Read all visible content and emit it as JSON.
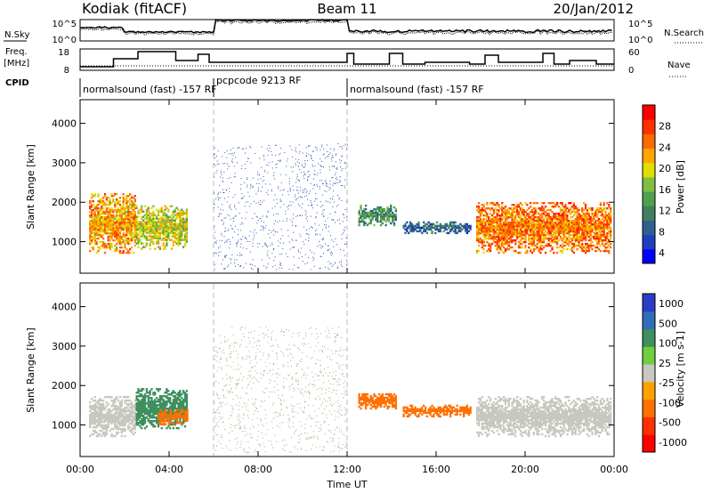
{
  "header": {
    "station": "Kodiak (fitACF)",
    "beam": "Beam 11",
    "date": "20/Jan/2012"
  },
  "left_labels": {
    "nsky": "N.Sky",
    "freq_line1": "Freq.",
    "freq_line2": "[MHz]",
    "cpid": "CPID"
  },
  "right_labels": {
    "nsearch": "N.Search",
    "nave": "Nave"
  },
  "top_panel_ticks": {
    "n_left": [
      "10^5",
      "10^0"
    ],
    "n_right": [
      "10^5",
      "10^0"
    ],
    "freq_left": [
      "18",
      "8"
    ],
    "freq_right": [
      "60",
      "0"
    ]
  },
  "cpid_segments": [
    {
      "label": "normalsound (fast) -157 RF",
      "start_h": 0,
      "end_h": 6
    },
    {
      "label": "pcpcode 9213 RF",
      "start_h": 6,
      "end_h": 12
    },
    {
      "label": "normalsound (fast) -157 RF",
      "start_h": 12,
      "end_h": 24
    }
  ],
  "chart_data": [
    {
      "type": "heatmap",
      "ylabel": "Slant Range [km]",
      "xlabel": "Time UT",
      "xlim": [
        0,
        24
      ],
      "ylim": [
        200,
        4600
      ],
      "x_ticks": [
        "00:00",
        "04:00",
        "08:00",
        "12:00",
        "16:00",
        "20:00",
        "00:00"
      ],
      "y_ticks": [
        1000,
        2000,
        3000,
        4000
      ],
      "colorbar": {
        "label": "Power [dB]",
        "ticks": [
          4,
          8,
          12,
          16,
          20,
          24,
          28
        ],
        "colors": [
          "#0000ff",
          "#1f3fbf",
          "#2f5f8f",
          "#3f7f5f",
          "#4fa04f",
          "#7fbf3f",
          "#dfdf00",
          "#ffa500",
          "#ff6a00",
          "#ff3000",
          "#ff0000"
        ]
      },
      "echo_regions": [
        {
          "t_start": 0.4,
          "t_end": 2.5,
          "r_start": 700,
          "r_end": 2200,
          "value": 22
        },
        {
          "t_start": 2.5,
          "t_end": 4.8,
          "r_start": 800,
          "r_end": 1900,
          "value": 18
        },
        {
          "t_start": 12.5,
          "t_end": 14.2,
          "r_start": 1400,
          "r_end": 1900,
          "value": 12
        },
        {
          "t_start": 14.5,
          "t_end": 17.5,
          "r_start": 1200,
          "r_end": 1500,
          "value": 8
        },
        {
          "t_start": 17.8,
          "t_end": 23.8,
          "r_start": 700,
          "r_end": 2000,
          "value": 24
        }
      ]
    },
    {
      "type": "heatmap",
      "ylabel": "Slant Range [km]",
      "xlabel": "Time UT",
      "xlim": [
        0,
        24
      ],
      "ylim": [
        200,
        4600
      ],
      "x_ticks": [
        "00:00",
        "04:00",
        "08:00",
        "12:00",
        "16:00",
        "20:00",
        "00:00"
      ],
      "y_ticks": [
        1000,
        2000,
        3000,
        4000
      ],
      "colorbar": {
        "label": "Velocity [m s-1]",
        "ticks": [
          1000,
          500,
          100,
          25,
          -25,
          -100,
          -500,
          -1000
        ],
        "colors": [
          "#2a3cc8",
          "#2f6fb8",
          "#3f8f5f",
          "#6fcf3f",
          "#c8c8c0",
          "#ffa000",
          "#ff7000",
          "#ff3000",
          "#ff0000"
        ]
      },
      "echo_regions": [
        {
          "t_start": 0.4,
          "t_end": 2.5,
          "r_start": 700,
          "r_end": 1700,
          "value": 0
        },
        {
          "t_start": 2.5,
          "t_end": 4.8,
          "r_start": 900,
          "r_end": 1900,
          "value": 100
        },
        {
          "t_start": 3.5,
          "t_end": 4.8,
          "r_start": 1000,
          "r_end": 1400,
          "value": -300
        },
        {
          "t_start": 12.5,
          "t_end": 14.2,
          "r_start": 1400,
          "r_end": 1800,
          "value": -300
        },
        {
          "t_start": 14.5,
          "t_end": 17.5,
          "r_start": 1200,
          "r_end": 1500,
          "value": -300
        },
        {
          "t_start": 17.8,
          "t_end": 23.8,
          "r_start": 700,
          "r_end": 1700,
          "value": 0
        }
      ]
    }
  ],
  "colors": {
    "gap_line": "#bbbbbb",
    "noise": "#3050b0",
    "vnoise": "#b0a080"
  }
}
